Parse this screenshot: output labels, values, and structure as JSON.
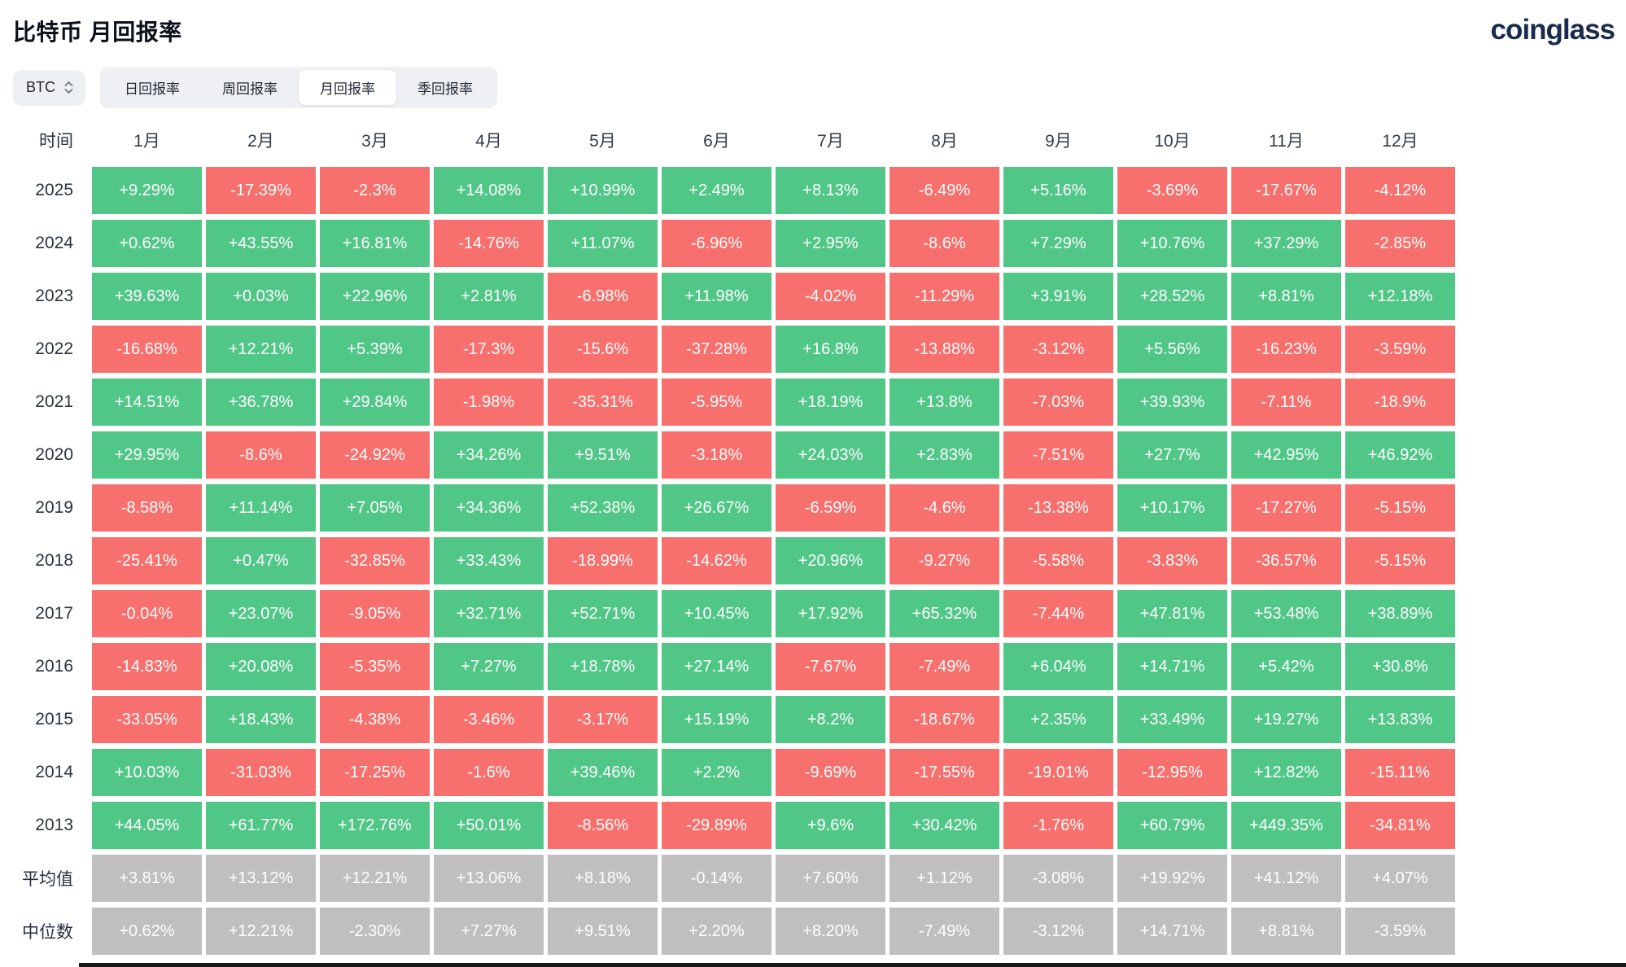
{
  "page": {
    "title": "比特币 月回报率",
    "logo": "coinglass"
  },
  "controls": {
    "coin_selector": {
      "value": "BTC"
    },
    "tabs": [
      {
        "name": "daily",
        "label": "日回报率",
        "active": false
      },
      {
        "name": "weekly",
        "label": "周回报率",
        "active": false
      },
      {
        "name": "monthly",
        "label": "月回报率",
        "active": true
      },
      {
        "name": "quarterly",
        "label": "季回报率",
        "active": false
      }
    ]
  },
  "chart_data": {
    "type": "heatmap",
    "title": "比特币 月回报率",
    "corner_label": "时间",
    "columns": [
      "1月",
      "2月",
      "3月",
      "4月",
      "5月",
      "6月",
      "7月",
      "8月",
      "9月",
      "10月",
      "11月",
      "12月"
    ],
    "rows": [
      {
        "label": "2025",
        "kind": "year",
        "values": [
          "+9.29%",
          "-17.39%",
          "-2.3%",
          "+14.08%",
          "+10.99%",
          "+2.49%",
          "+8.13%",
          "-6.49%",
          "+5.16%",
          "-3.69%",
          "-17.67%",
          "-4.12%"
        ]
      },
      {
        "label": "2024",
        "kind": "year",
        "values": [
          "+0.62%",
          "+43.55%",
          "+16.81%",
          "-14.76%",
          "+11.07%",
          "-6.96%",
          "+2.95%",
          "-8.6%",
          "+7.29%",
          "+10.76%",
          "+37.29%",
          "-2.85%"
        ]
      },
      {
        "label": "2023",
        "kind": "year",
        "values": [
          "+39.63%",
          "+0.03%",
          "+22.96%",
          "+2.81%",
          "-6.98%",
          "+11.98%",
          "-4.02%",
          "-11.29%",
          "+3.91%",
          "+28.52%",
          "+8.81%",
          "+12.18%"
        ]
      },
      {
        "label": "2022",
        "kind": "year",
        "values": [
          "-16.68%",
          "+12.21%",
          "+5.39%",
          "-17.3%",
          "-15.6%",
          "-37.28%",
          "+16.8%",
          "-13.88%",
          "-3.12%",
          "+5.56%",
          "-16.23%",
          "-3.59%"
        ]
      },
      {
        "label": "2021",
        "kind": "year",
        "values": [
          "+14.51%",
          "+36.78%",
          "+29.84%",
          "-1.98%",
          "-35.31%",
          "-5.95%",
          "+18.19%",
          "+13.8%",
          "-7.03%",
          "+39.93%",
          "-7.11%",
          "-18.9%"
        ]
      },
      {
        "label": "2020",
        "kind": "year",
        "values": [
          "+29.95%",
          "-8.6%",
          "-24.92%",
          "+34.26%",
          "+9.51%",
          "-3.18%",
          "+24.03%",
          "+2.83%",
          "-7.51%",
          "+27.7%",
          "+42.95%",
          "+46.92%"
        ]
      },
      {
        "label": "2019",
        "kind": "year",
        "values": [
          "-8.58%",
          "+11.14%",
          "+7.05%",
          "+34.36%",
          "+52.38%",
          "+26.67%",
          "-6.59%",
          "-4.6%",
          "-13.38%",
          "+10.17%",
          "-17.27%",
          "-5.15%"
        ]
      },
      {
        "label": "2018",
        "kind": "year",
        "values": [
          "-25.41%",
          "+0.47%",
          "-32.85%",
          "+33.43%",
          "-18.99%",
          "-14.62%",
          "+20.96%",
          "-9.27%",
          "-5.58%",
          "-3.83%",
          "-36.57%",
          "-5.15%"
        ]
      },
      {
        "label": "2017",
        "kind": "year",
        "values": [
          "-0.04%",
          "+23.07%",
          "-9.05%",
          "+32.71%",
          "+52.71%",
          "+10.45%",
          "+17.92%",
          "+65.32%",
          "-7.44%",
          "+47.81%",
          "+53.48%",
          "+38.89%"
        ]
      },
      {
        "label": "2016",
        "kind": "year",
        "values": [
          "-14.83%",
          "+20.08%",
          "-5.35%",
          "+7.27%",
          "+18.78%",
          "+27.14%",
          "-7.67%",
          "-7.49%",
          "+6.04%",
          "+14.71%",
          "+5.42%",
          "+30.8%"
        ]
      },
      {
        "label": "2015",
        "kind": "year",
        "values": [
          "-33.05%",
          "+18.43%",
          "-4.38%",
          "-3.46%",
          "-3.17%",
          "+15.19%",
          "+8.2%",
          "-18.67%",
          "+2.35%",
          "+33.49%",
          "+19.27%",
          "+13.83%"
        ]
      },
      {
        "label": "2014",
        "kind": "year",
        "values": [
          "+10.03%",
          "-31.03%",
          "-17.25%",
          "-1.6%",
          "+39.46%",
          "+2.2%",
          "-9.69%",
          "-17.55%",
          "-19.01%",
          "-12.95%",
          "+12.82%",
          "-15.11%"
        ]
      },
      {
        "label": "2013",
        "kind": "year",
        "values": [
          "+44.05%",
          "+61.77%",
          "+172.76%",
          "+50.01%",
          "-8.56%",
          "-29.89%",
          "+9.6%",
          "+30.42%",
          "-1.76%",
          "+60.79%",
          "+449.35%",
          "-34.81%"
        ]
      },
      {
        "label": "平均值",
        "kind": "summary",
        "values": [
          "+3.81%",
          "+13.12%",
          "+12.21%",
          "+13.06%",
          "+8.18%",
          "-0.14%",
          "+7.60%",
          "+1.12%",
          "-3.08%",
          "+19.92%",
          "+41.12%",
          "+4.07%"
        ]
      },
      {
        "label": "中位数",
        "kind": "summary",
        "values": [
          "+0.62%",
          "+12.21%",
          "-2.30%",
          "+7.27%",
          "+9.51%",
          "+2.20%",
          "+8.20%",
          "-7.49%",
          "-3.12%",
          "+14.71%",
          "+8.81%",
          "-3.59%"
        ]
      }
    ],
    "colors": {
      "positive": "#51c787",
      "negative": "#f7706d",
      "summary": "#bfbfbf"
    }
  }
}
